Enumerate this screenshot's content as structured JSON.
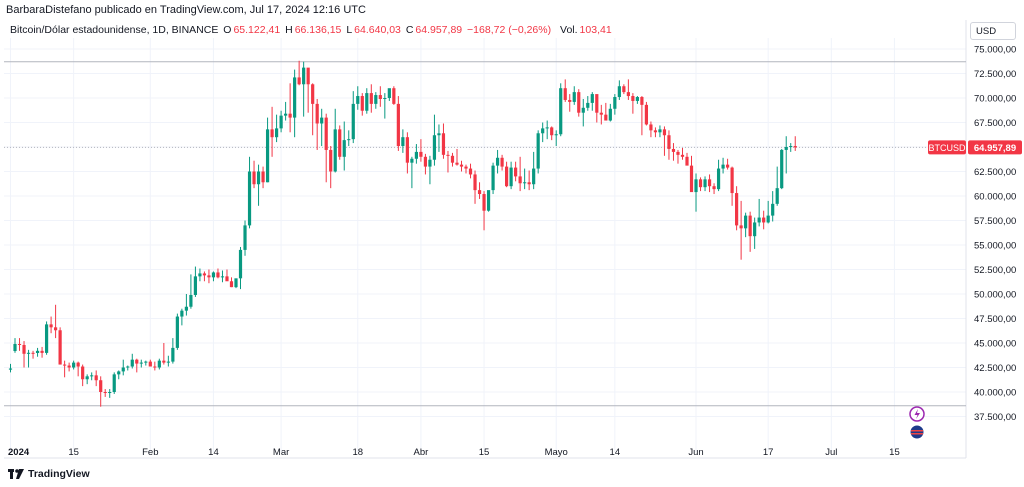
{
  "header": {
    "author_line": "BarbaraDistefano publicado en TradingView.com, Jul 17, 2024 12:16 UTC"
  },
  "legend": {
    "symbol": "Bitcoin/Dólar estadounidense, 1D, BINANCE",
    "o_label": "O",
    "o_value": "65.122,41",
    "h_label": "H",
    "h_value": "66.136,15",
    "l_label": "L",
    "l_value": "64.640,03",
    "c_label": "C",
    "c_value": "64.957,89",
    "change": "−168,72 (−0,26%)",
    "vol_label": "Vol.",
    "vol_value": "103,41"
  },
  "currency": "USD",
  "price_tag": {
    "ticker": "BTCUSD",
    "value": "64.957,89"
  },
  "footer": {
    "brand": "TradingView"
  },
  "colors": {
    "up": "#089981",
    "down": "#f23645",
    "grid": "#f0f3fa",
    "axis_text": "#131722",
    "brand_icon": "#131722"
  },
  "chart_data": {
    "type": "candlestick",
    "title": "Bitcoin/Dólar estadounidense, 1D, BINANCE",
    "ylim": [
      36000,
      76000
    ],
    "y_ticks": [
      "75.000,00",
      "72.500,00",
      "70.000,00",
      "67.500,00",
      "65.000,00",
      "62.500,00",
      "60.000,00",
      "57.500,00",
      "55.000,00",
      "52.500,00",
      "50.000,00",
      "47.500,00",
      "45.000,00",
      "42.500,00",
      "40.000,00",
      "37.500,00"
    ],
    "y_tick_values": [
      75000,
      72500,
      70000,
      67500,
      65000,
      62500,
      60000,
      57500,
      55000,
      52500,
      50000,
      47500,
      45000,
      42500,
      40000,
      37500
    ],
    "x_labels": [
      "2024",
      "15",
      "Feb",
      "14",
      "Mar",
      "18",
      "Abr",
      "15",
      "Mayo",
      "14",
      "Jun",
      "17",
      "Jul",
      "15"
    ],
    "x_label_days": [
      0,
      14,
      31,
      45,
      60,
      77,
      91,
      105,
      121,
      134,
      152,
      168,
      182,
      196
    ],
    "reference_lines": [
      73700,
      38600
    ],
    "last_price": 64957.89,
    "candles": [
      [
        42280,
        42870,
        42000,
        42400
      ],
      [
        44180,
        45500,
        44000,
        44900
      ],
      [
        44900,
        45500,
        44200,
        44800
      ],
      [
        44800,
        45200,
        42500,
        43900
      ],
      [
        43900,
        44300,
        42500,
        44000
      ],
      [
        44000,
        44200,
        43400,
        43980
      ],
      [
        43980,
        44500,
        43600,
        44200
      ],
      [
        44200,
        44600,
        43500,
        43990
      ],
      [
        43990,
        47200,
        43800,
        46900
      ],
      [
        46900,
        47700,
        46000,
        46600
      ],
      [
        46600,
        48900,
        45500,
        46300
      ],
      [
        46300,
        46600,
        42800,
        42800
      ],
      [
        42800,
        43200,
        41500,
        42700
      ],
      [
        42700,
        43000,
        42100,
        42500
      ],
      [
        42500,
        43200,
        42300,
        43000
      ],
      [
        43000,
        43100,
        41600,
        42600
      ],
      [
        42600,
        42800,
        40600,
        41300
      ],
      [
        41300,
        41800,
        40800,
        41600
      ],
      [
        41600,
        42000,
        41200,
        41700
      ],
      [
        41700,
        42200,
        40600,
        41200
      ],
      [
        41200,
        41600,
        38500,
        40000
      ],
      [
        40000,
        40300,
        39500,
        39900
      ],
      [
        39900,
        40300,
        39400,
        40000
      ],
      [
        40000,
        42000,
        39800,
        41800
      ],
      [
        41800,
        42200,
        41300,
        42100
      ],
      [
        42100,
        43300,
        41700,
        42500
      ],
      [
        42500,
        42700,
        42200,
        42600
      ],
      [
        42600,
        43900,
        42400,
        43300
      ],
      [
        43300,
        43400,
        42000,
        42900
      ],
      [
        42900,
        43300,
        42500,
        43000
      ],
      [
        43000,
        43200,
        42700,
        43100
      ],
      [
        43100,
        43300,
        42800,
        42600
      ],
      [
        42600,
        43100,
        42200,
        42500
      ],
      [
        42500,
        43400,
        42300,
        43200
      ],
      [
        43200,
        45000,
        42800,
        43000
      ],
      [
        43000,
        43700,
        42600,
        43100
      ],
      [
        43100,
        45500,
        42900,
        44500
      ],
      [
        44500,
        48000,
        44300,
        47700
      ],
      [
        47700,
        48500,
        46800,
        48300
      ],
      [
        48300,
        50000,
        47800,
        48700
      ],
      [
        48700,
        52000,
        48500,
        49900
      ],
      [
        49900,
        52800,
        49700,
        51800
      ],
      [
        51800,
        52600,
        51300,
        52100
      ],
      [
        52100,
        52300,
        51300,
        51900
      ],
      [
        51900,
        52500,
        51100,
        51700
      ],
      [
        51700,
        52300,
        51300,
        52200
      ],
      [
        52200,
        52600,
        51600,
        51700
      ],
      [
        51700,
        52400,
        51200,
        51800
      ],
      [
        51800,
        52500,
        51400,
        51300
      ],
      [
        51300,
        51700,
        50700,
        50700
      ],
      [
        50700,
        51400,
        50600,
        51600
      ],
      [
        51600,
        54800,
        50500,
        54500
      ],
      [
        54500,
        57500,
        53900,
        57000
      ],
      [
        57000,
        64000,
        56700,
        62500
      ],
      [
        62500,
        63600,
        60800,
        61200
      ],
      [
        61200,
        63200,
        59000,
        62500
      ],
      [
        62500,
        63000,
        60800,
        61400
      ],
      [
        61400,
        68000,
        61400,
        66800
      ],
      [
        66800,
        69100,
        64000,
        66000
      ],
      [
        66000,
        68300,
        65500,
        66900
      ],
      [
        66900,
        68700,
        66500,
        68200
      ],
      [
        68200,
        69600,
        67700,
        68400
      ],
      [
        68400,
        71500,
        66500,
        68000
      ],
      [
        68000,
        72900,
        66000,
        72100
      ],
      [
        72100,
        73800,
        71300,
        71400
      ],
      [
        71400,
        73700,
        68100,
        73100
      ],
      [
        73100,
        73000,
        68500,
        71400
      ],
      [
        71400,
        71500,
        66200,
        69400
      ],
      [
        69400,
        69900,
        64700,
        67400
      ],
      [
        67400,
        68900,
        65100,
        68000
      ],
      [
        68000,
        68400,
        61400,
        64700
      ],
      [
        64700,
        65100,
        60800,
        62500
      ],
      [
        62500,
        68900,
        62400,
        66800
      ],
      [
        66800,
        67200,
        63700,
        64000
      ],
      [
        64000,
        67600,
        62600,
        65700
      ],
      [
        65700,
        66700,
        65100,
        65800
      ],
      [
        65800,
        70700,
        65400,
        69400
      ],
      [
        69400,
        71200,
        68800,
        70200
      ],
      [
        70200,
        70500,
        68200,
        68700
      ],
      [
        68700,
        71000,
        68400,
        70500
      ],
      [
        70500,
        71400,
        68500,
        69400
      ],
      [
        69400,
        70600,
        68900,
        70300
      ],
      [
        70300,
        71200,
        69100,
        69900
      ],
      [
        69900,
        70500,
        67900,
        70000
      ],
      [
        70000,
        70800,
        69700,
        71000
      ],
      [
        71000,
        71200,
        69300,
        69400
      ],
      [
        69400,
        70200,
        64600,
        65100
      ],
      [
        65100,
        66800,
        64400,
        66000
      ],
      [
        66000,
        66500,
        62300,
        63400
      ],
      [
        63400,
        64000,
        60800,
        63800
      ],
      [
        63800,
        65300,
        63300,
        64500
      ],
      [
        64500,
        65800,
        63500,
        64000
      ],
      [
        64000,
        64300,
        62200,
        63000
      ],
      [
        63000,
        64100,
        61200,
        63700
      ],
      [
        63700,
        68300,
        63100,
        66200
      ],
      [
        66200,
        67300,
        64500,
        66400
      ],
      [
        66400,
        67400,
        63800,
        64200
      ],
      [
        64200,
        64600,
        62400,
        64100
      ],
      [
        64100,
        64400,
        63000,
        63400
      ],
      [
        63400,
        64800,
        63100,
        63200
      ],
      [
        63200,
        63600,
        62500,
        63000
      ],
      [
        63000,
        63200,
        62300,
        62800
      ],
      [
        62800,
        63300,
        61800,
        62200
      ],
      [
        62200,
        62600,
        59200,
        60600
      ],
      [
        60600,
        61400,
        59700,
        60200
      ],
      [
        60200,
        60500,
        56500,
        58500
      ],
      [
        58500,
        60400,
        58400,
        60600
      ],
      [
        60600,
        63400,
        60200,
        63100
      ],
      [
        63100,
        64700,
        62300,
        63900
      ],
      [
        63900,
        64200,
        62600,
        63000
      ],
      [
        63000,
        63500,
        60900,
        61000
      ],
      [
        61000,
        63500,
        60700,
        62900
      ],
      [
        62900,
        63500,
        61500,
        62000
      ],
      [
        62000,
        64000,
        60500,
        61300
      ],
      [
        61300,
        62800,
        60700,
        61400
      ],
      [
        61400,
        62600,
        60600,
        61200
      ],
      [
        61200,
        64500,
        60700,
        62800
      ],
      [
        62800,
        66700,
        62300,
        66400
      ],
      [
        66400,
        67500,
        65500,
        66900
      ],
      [
        66900,
        67700,
        65800,
        67000
      ],
      [
        67000,
        67100,
        65700,
        66200
      ],
      [
        66200,
        66700,
        65100,
        66300
      ],
      [
        66300,
        71500,
        66100,
        71000
      ],
      [
        71000,
        71900,
        69600,
        69800
      ],
      [
        69800,
        70400,
        68600,
        69600
      ],
      [
        69600,
        71200,
        69300,
        70600
      ],
      [
        70600,
        70900,
        68100,
        68500
      ],
      [
        68500,
        69900,
        67100,
        69000
      ],
      [
        69000,
        70200,
        68700,
        69500
      ],
      [
        69500,
        70600,
        68700,
        70400
      ],
      [
        70400,
        70300,
        67500,
        68500
      ],
      [
        68500,
        69300,
        67300,
        68300
      ],
      [
        68300,
        69500,
        67700,
        67700
      ],
      [
        67700,
        69400,
        67600,
        68900
      ],
      [
        68900,
        70400,
        68300,
        70100
      ],
      [
        70100,
        71800,
        69800,
        71200
      ],
      [
        71200,
        71400,
        70400,
        70600
      ],
      [
        70600,
        71900,
        69800,
        70200
      ],
      [
        70200,
        70500,
        68400,
        69700
      ],
      [
        69700,
        70200,
        69400,
        70100
      ],
      [
        70100,
        70200,
        66200,
        69300
      ],
      [
        69300,
        69600,
        67200,
        67300
      ],
      [
        67300,
        67600,
        66000,
        66700
      ],
      [
        66700,
        67000,
        66000,
        66500
      ],
      [
        66500,
        67200,
        66000,
        66800
      ],
      [
        66800,
        67100,
        64100,
        66200
      ],
      [
        66200,
        66700,
        63700,
        64800
      ],
      [
        64800,
        65400,
        63600,
        64500
      ],
      [
        64500,
        64700,
        63300,
        64200
      ],
      [
        64200,
        64900,
        63700,
        64000
      ],
      [
        64000,
        64400,
        63200,
        63100
      ],
      [
        63100,
        64100,
        60700,
        60400
      ],
      [
        60400,
        62300,
        58400,
        61700
      ],
      [
        61700,
        61900,
        60500,
        60900
      ],
      [
        60900,
        62000,
        60500,
        61700
      ],
      [
        61700,
        62200,
        60400,
        61000
      ],
      [
        61000,
        61300,
        60200,
        60700
      ],
      [
        60700,
        63700,
        60500,
        62800
      ],
      [
        62800,
        63900,
        62300,
        63200
      ],
      [
        63200,
        63800,
        62700,
        62900
      ],
      [
        62900,
        63000,
        59000,
        60300
      ],
      [
        60300,
        61000,
        56500,
        57000
      ],
      [
        57000,
        59500,
        53500,
        56700
      ],
      [
        56700,
        58300,
        55800,
        58000
      ],
      [
        58000,
        58400,
        54300,
        55900
      ],
      [
        55900,
        57800,
        54600,
        57300
      ],
      [
        57300,
        59700,
        56900,
        57800
      ],
      [
        57800,
        58500,
        56600,
        57300
      ],
      [
        57300,
        59500,
        57200,
        58000
      ],
      [
        58000,
        60500,
        57400,
        59200
      ],
      [
        59200,
        63000,
        59000,
        60800
      ],
      [
        60800,
        64800,
        60700,
        64700
      ],
      [
        64700,
        66100,
        62300,
        65000
      ],
      [
        65000,
        65400,
        64500,
        65100
      ],
      [
        65100,
        66100,
        64600,
        64960
      ]
    ]
  }
}
